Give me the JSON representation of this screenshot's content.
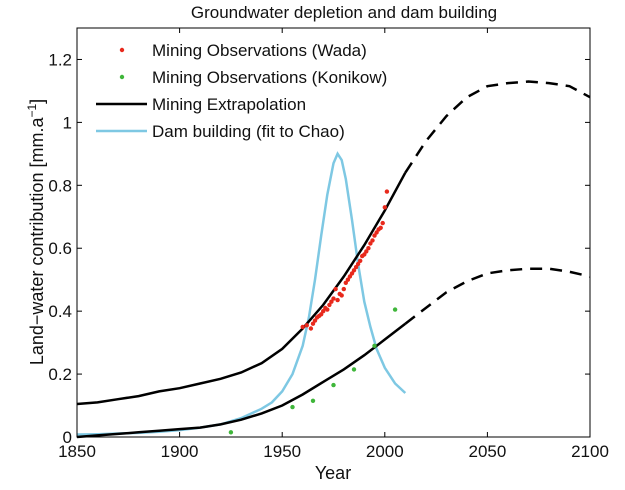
{
  "chart_data": {
    "type": "line",
    "title": "Groundwater depletion and dam building",
    "xlabel": "Year",
    "ylabel": "Land−water contribution [mm.a",
    "ylabel_sup": "−1",
    "ylabel_close": "]",
    "xlim": [
      1850,
      2100
    ],
    "ylim": [
      0,
      1.3
    ],
    "xticks": [
      1850,
      1900,
      1950,
      2000,
      2050,
      2100
    ],
    "yticks": [
      0,
      0.2,
      0.4,
      0.6,
      0.8,
      1,
      1.2
    ],
    "xtick_labels": [
      "1850",
      "1900",
      "1950",
      "2000",
      "2050",
      "2100"
    ],
    "ytick_labels": [
      "0",
      "0.2",
      "0.4",
      "0.6",
      "0.8",
      "1",
      "1.2"
    ],
    "grid": false,
    "legend_position": "top-left",
    "series": [
      {
        "name": "Mining Observations (Wada)",
        "kind": "scatter",
        "color": "#e8291c",
        "x": [
          1960,
          1962,
          1964,
          1965,
          1966,
          1967,
          1968,
          1969,
          1970,
          1971,
          1972,
          1973,
          1974,
          1975,
          1976,
          1977,
          1978,
          1979,
          1980,
          1981,
          1982,
          1983,
          1984,
          1985,
          1986,
          1987,
          1988,
          1989,
          1990,
          1991,
          1992,
          1993,
          1994,
          1995,
          1996,
          1997,
          1998,
          1999,
          2000,
          2001
        ],
        "y": [
          0.35,
          0.355,
          0.345,
          0.36,
          0.37,
          0.38,
          0.385,
          0.39,
          0.4,
          0.41,
          0.405,
          0.42,
          0.43,
          0.44,
          0.47,
          0.435,
          0.455,
          0.45,
          0.47,
          0.49,
          0.5,
          0.51,
          0.52,
          0.53,
          0.54,
          0.55,
          0.56,
          0.575,
          0.58,
          0.59,
          0.6,
          0.615,
          0.625,
          0.64,
          0.65,
          0.66,
          0.665,
          0.68,
          0.73,
          0.78
        ]
      },
      {
        "name": "Mining Observations (Konikow)",
        "kind": "scatter",
        "color": "#3fb63a",
        "x": [
          1925,
          1955,
          1965,
          1975,
          1985,
          1995,
          2005
        ],
        "y": [
          0.015,
          0.095,
          0.115,
          0.165,
          0.215,
          0.29,
          0.405
        ]
      },
      {
        "name": "Mining Extrapolation",
        "kind": "line",
        "color": "#000000",
        "x": [
          1850,
          1860,
          1870,
          1880,
          1890,
          1900,
          1910,
          1920,
          1930,
          1940,
          1950,
          1960,
          1970,
          1980,
          1990,
          2000,
          2010,
          2020,
          2030,
          2040,
          2050,
          2060,
          2070,
          2080,
          2090,
          2100
        ],
        "y": [
          0.105,
          0.11,
          0.12,
          0.13,
          0.145,
          0.155,
          0.17,
          0.185,
          0.205,
          0.235,
          0.28,
          0.345,
          0.42,
          0.51,
          0.61,
          0.72,
          0.84,
          0.94,
          1.02,
          1.08,
          1.115,
          1.125,
          1.13,
          1.125,
          1.115,
          1.08
        ],
        "dashed_after": 2010
      },
      {
        "name": "",
        "kind": "line",
        "color": "#000000",
        "x": [
          1850,
          1860,
          1870,
          1880,
          1890,
          1900,
          1910,
          1920,
          1930,
          1940,
          1950,
          1960,
          1970,
          1980,
          1990,
          2000,
          2010,
          2020,
          2030,
          2040,
          2050,
          2060,
          2070,
          2080,
          2090,
          2100
        ],
        "y": [
          0.0,
          0.005,
          0.01,
          0.015,
          0.02,
          0.025,
          0.03,
          0.04,
          0.055,
          0.075,
          0.1,
          0.135,
          0.175,
          0.215,
          0.26,
          0.31,
          0.36,
          0.41,
          0.46,
          0.495,
          0.52,
          0.53,
          0.535,
          0.535,
          0.525,
          0.51
        ],
        "dashed_after": 2010
      },
      {
        "name": "Dam building (fit to Chao)",
        "kind": "line",
        "color": "#7ec8e3",
        "x": [
          1850,
          1860,
          1870,
          1880,
          1890,
          1900,
          1910,
          1920,
          1930,
          1940,
          1945,
          1950,
          1955,
          1960,
          1963,
          1966,
          1969,
          1972,
          1975,
          1977,
          1979,
          1981,
          1984,
          1987,
          1990,
          1993,
          1996,
          2000,
          2005,
          2010
        ],
        "y": [
          0.008,
          0.009,
          0.011,
          0.013,
          0.017,
          0.022,
          0.03,
          0.04,
          0.06,
          0.09,
          0.11,
          0.145,
          0.2,
          0.29,
          0.38,
          0.5,
          0.64,
          0.77,
          0.87,
          0.9,
          0.88,
          0.82,
          0.69,
          0.55,
          0.43,
          0.35,
          0.28,
          0.22,
          0.17,
          0.14
        ]
      }
    ]
  }
}
